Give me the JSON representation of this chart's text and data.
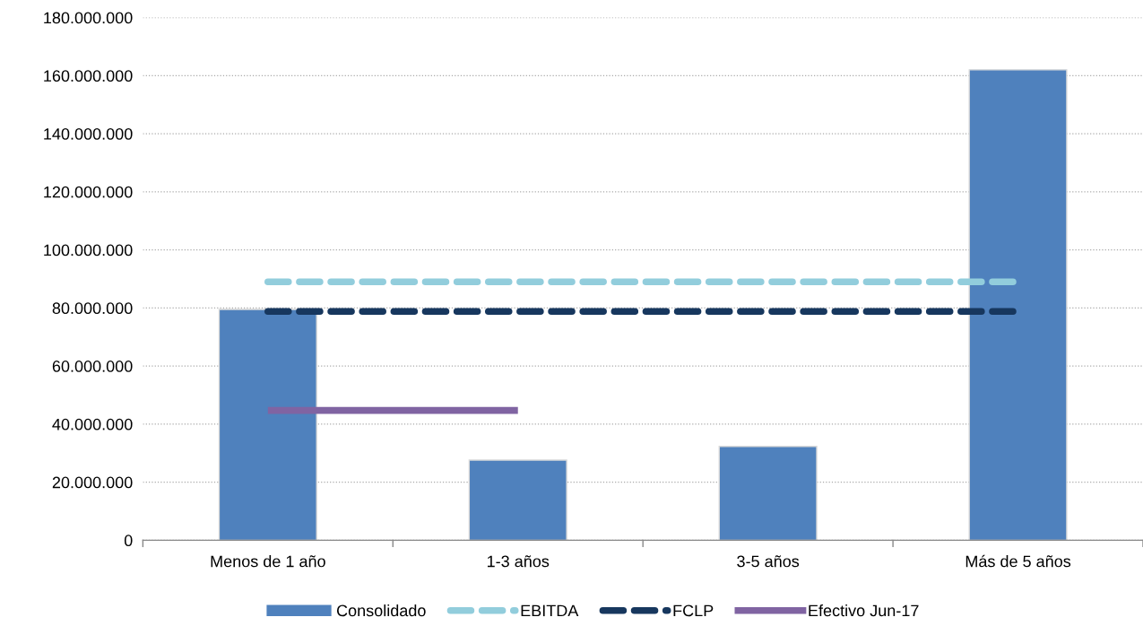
{
  "chart_data": {
    "type": "bar",
    "categories": [
      "Menos de 1 año",
      "1-3 años",
      "3-5 años",
      "Más de 5 años"
    ],
    "series": [
      {
        "name": "Consolidado",
        "color": "#4f81bd",
        "values": [
          79500000,
          27600000,
          32300000,
          162000000
        ]
      },
      {
        "name": "EBITDA",
        "type": "line",
        "line_style": "dashed",
        "color": "#92cddc",
        "values": [
          89000000,
          89000000,
          89000000,
          89000000
        ]
      },
      {
        "name": "FCLP",
        "type": "line",
        "line_style": "dashed",
        "color": "#17375e",
        "values": [
          78800000,
          78800000,
          78800000,
          78800000
        ]
      },
      {
        "name": "Efectivo Jun-17",
        "type": "line",
        "line_style": "solid",
        "color": "#8064a2",
        "values": [
          44700000,
          44700000,
          null,
          null
        ]
      }
    ],
    "ylim": [
      0,
      180000000
    ],
    "yticks": [
      {
        "value": 0,
        "label": "0"
      },
      {
        "value": 20000000,
        "label": "20.000.000"
      },
      {
        "value": 40000000,
        "label": "40.000.000"
      },
      {
        "value": 60000000,
        "label": "60.000.000"
      },
      {
        "value": 80000000,
        "label": "80.000.000"
      },
      {
        "value": 100000000,
        "label": "100.000.000"
      },
      {
        "value": 120000000,
        "label": "120.000.000"
      },
      {
        "value": 140000000,
        "label": "140.000.000"
      },
      {
        "value": 160000000,
        "label": "160.000.000"
      },
      {
        "value": 180000000,
        "label": "180.000.000"
      }
    ],
    "grid": "y",
    "legend": "bottom",
    "marker": "none"
  }
}
